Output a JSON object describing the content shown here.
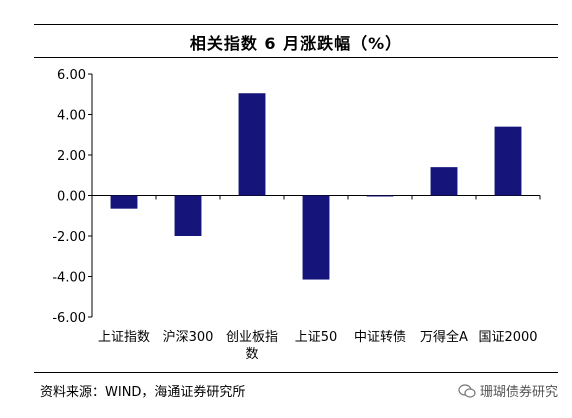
{
  "chart_data": {
    "type": "bar",
    "title": "相关指数 6 月涨跌幅（%）",
    "categories": [
      "上证指数",
      "沪深300",
      "创业板指数",
      "上证50",
      "中证转债",
      "万得全A",
      "国证2000"
    ],
    "category_label_lines": [
      [
        "上证指数"
      ],
      [
        "沪深300"
      ],
      [
        "创业板指",
        "数"
      ],
      [
        "上证50"
      ],
      [
        "中证转债"
      ],
      [
        "万得全A"
      ],
      [
        "国证2000"
      ]
    ],
    "values": [
      -0.65,
      -2.0,
      5.05,
      -4.15,
      0.0,
      1.4,
      3.4
    ],
    "ylim": [
      -6,
      6
    ],
    "yticks": [
      "-6.00",
      "-4.00",
      "-2.00",
      "0.00",
      "2.00",
      "4.00",
      "6.00"
    ],
    "ytick_values": [
      -6,
      -4,
      -2,
      0,
      2,
      4,
      6
    ],
    "xlabel": "",
    "ylabel": "",
    "grid": false,
    "bar_color": "#14147A"
  },
  "footer": {
    "source": "资料来源：WIND，海通证券研究所",
    "watermark": "珊瑚债券研究"
  }
}
